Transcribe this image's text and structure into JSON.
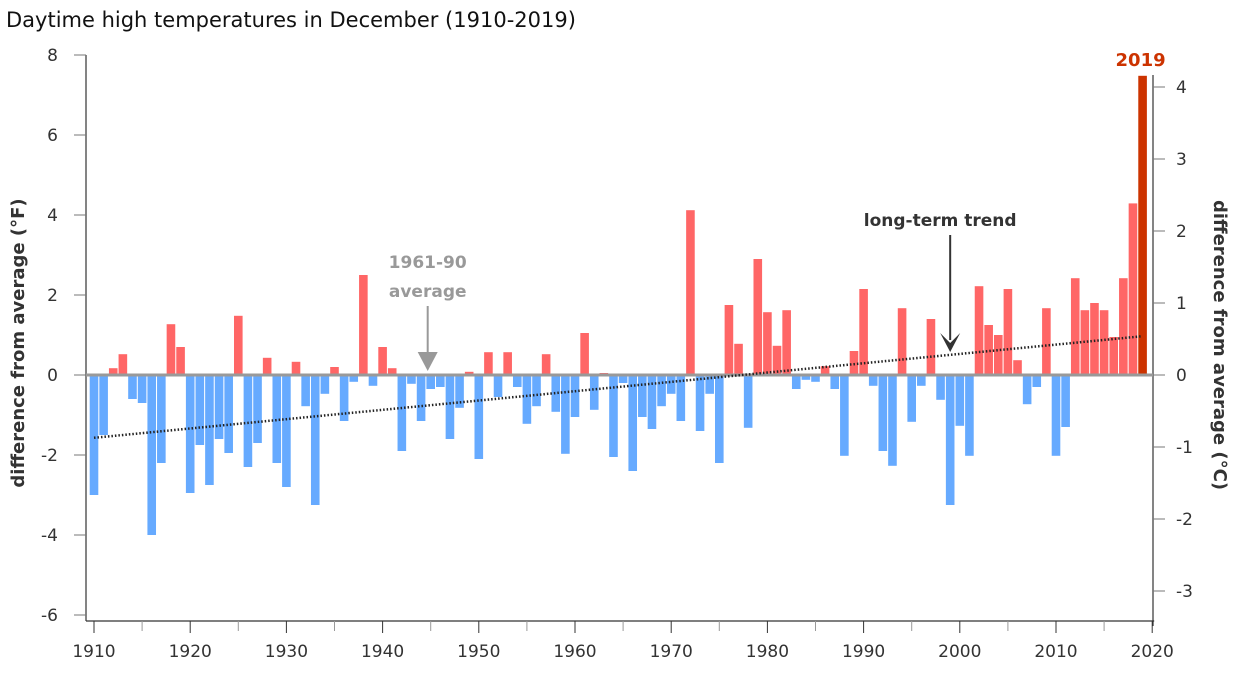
{
  "chart_data": {
    "type": "bar",
    "title": "Daytime high temperatures in December (1910-2019)",
    "ylabel_left": "difference from average (°F)",
    "ylabel_right": "difference from average (°C)",
    "xlabel": "",
    "ylim_f": [
      -6,
      8
    ],
    "yticks_f": [
      -6,
      -4,
      -2,
      0,
      2,
      4,
      6,
      8
    ],
    "yticks_c": [
      -3,
      -2,
      -1,
      0,
      1,
      2,
      3,
      4
    ],
    "xlim": [
      1910,
      2020
    ],
    "xticks": [
      1910,
      1920,
      1930,
      1940,
      1950,
      1960,
      1970,
      1980,
      1990,
      2000,
      2010,
      2020
    ],
    "colors": {
      "positive": "#ff6666",
      "negative": "#66aaff",
      "highlight": "#cc3300",
      "baseline": "#999999",
      "trend": "#222222"
    },
    "years": [
      1910,
      1911,
      1912,
      1913,
      1914,
      1915,
      1916,
      1917,
      1918,
      1919,
      1920,
      1921,
      1922,
      1923,
      1924,
      1925,
      1926,
      1927,
      1928,
      1929,
      1930,
      1931,
      1932,
      1933,
      1934,
      1935,
      1936,
      1937,
      1938,
      1939,
      1940,
      1941,
      1942,
      1943,
      1944,
      1945,
      1946,
      1947,
      1948,
      1949,
      1950,
      1951,
      1952,
      1953,
      1954,
      1955,
      1956,
      1957,
      1958,
      1959,
      1960,
      1961,
      1962,
      1963,
      1964,
      1965,
      1966,
      1967,
      1968,
      1969,
      1970,
      1971,
      1972,
      1973,
      1974,
      1975,
      1976,
      1977,
      1978,
      1979,
      1980,
      1981,
      1982,
      1983,
      1984,
      1985,
      1986,
      1987,
      1988,
      1989,
      1990,
      1991,
      1992,
      1993,
      1994,
      1995,
      1996,
      1997,
      1998,
      1999,
      2000,
      2001,
      2002,
      2003,
      2004,
      2005,
      2006,
      2007,
      2008,
      2009,
      2010,
      2011,
      2012,
      2013,
      2014,
      2015,
      2016,
      2017,
      2018,
      2019
    ],
    "values_f": [
      -3.0,
      -1.5,
      0.17,
      0.52,
      -0.6,
      -0.7,
      -4.0,
      -2.2,
      1.27,
      0.7,
      -2.95,
      -1.75,
      -2.75,
      -1.6,
      -1.95,
      1.48,
      -2.3,
      -1.7,
      0.43,
      -2.2,
      -2.8,
      0.33,
      -0.78,
      -3.25,
      -0.47,
      0.2,
      -1.15,
      -0.17,
      2.5,
      -0.27,
      0.7,
      0.17,
      -1.9,
      -0.22,
      -1.15,
      -0.35,
      -0.3,
      -1.6,
      -0.82,
      0.08,
      -2.1,
      0.57,
      -0.55,
      0.57,
      -0.3,
      -1.22,
      -0.78,
      0.52,
      -0.92,
      -1.97,
      -1.05,
      1.05,
      -0.87,
      0.05,
      -2.05,
      -0.2,
      -2.4,
      -1.05,
      -1.35,
      -0.78,
      -0.47,
      -1.15,
      4.12,
      -1.4,
      -0.47,
      -2.2,
      1.75,
      0.78,
      -1.32,
      2.9,
      1.57,
      0.73,
      1.62,
      -0.35,
      -0.12,
      -0.17,
      0.22,
      -0.35,
      -2.02,
      0.6,
      2.15,
      -0.27,
      -1.9,
      -2.27,
      1.67,
      -1.17,
      -0.27,
      1.4,
      -0.62,
      -3.25,
      -1.27,
      -2.02,
      2.22,
      1.25,
      1.0,
      2.15,
      0.37,
      -0.73,
      -0.3,
      1.67,
      -2.02,
      -1.3,
      2.42,
      1.62,
      1.8,
      1.62,
      0.95,
      2.42,
      4.29,
      7.48
    ],
    "highlight_year": 2019,
    "trend_f": {
      "start_year": 1910,
      "start_value": -1.57,
      "end_year": 2019,
      "end_value": 0.97
    },
    "annotations": {
      "baseline_label_line1": "1961-90",
      "baseline_label_line2": "average",
      "baseline_arrow_year": 1945,
      "trend_label": "long-term trend",
      "trend_arrow_year": 1999,
      "highlight_label": "2019"
    },
    "grid": false,
    "legend": "none"
  }
}
